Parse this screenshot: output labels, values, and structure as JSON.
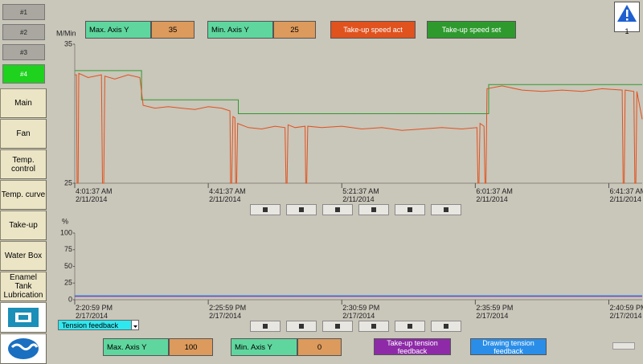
{
  "sidebar": {
    "unit_buttons": [
      "#1",
      "#2",
      "#3",
      "#4"
    ],
    "active_unit": 3,
    "menu": [
      "Main",
      "Fan",
      "Temp. control",
      "Temp. curve",
      "Take-up",
      "Water Box",
      "Enamel Tank Lubrication"
    ]
  },
  "warning_badge": "1",
  "axis_controls": {
    "max_label": "Max. Axis Y",
    "min_label": "Min. Axis Y"
  },
  "tension_selector": "Tension feedback",
  "chart_data": [
    {
      "type": "line",
      "y_unit": "M/Min",
      "xlim": [
        0,
        170
      ],
      "ylim": [
        25,
        35
      ],
      "yticks": [
        25,
        35
      ],
      "xticks": [
        {
          "value": 0,
          "label": "4:01:37 AM",
          "date": "2/11/2014"
        },
        {
          "value": 40,
          "label": "4:41:37 AM",
          "date": "2/11/2014"
        },
        {
          "value": 80,
          "label": "5:21:37 AM",
          "date": "2/11/2014"
        },
        {
          "value": 120,
          "label": "6:01:37 AM",
          "date": "2/11/2014"
        },
        {
          "value": 160,
          "label": "6:41:37 AM",
          "date": "2/11/2014"
        }
      ],
      "series": [
        {
          "name": "Take-up speed set",
          "color": "#2e9a2e",
          "x": [
            0,
            20,
            20,
            49,
            49,
            124,
            124,
            170
          ],
          "values": [
            33.1,
            33.1,
            31.0,
            31.0,
            30.0,
            30.0,
            32.1,
            32.1
          ]
        },
        {
          "name": "Take-up speed act",
          "color": "#e0521e",
          "x": [
            0,
            0.5,
            0.7,
            1.0,
            1.2,
            4,
            8,
            8.3,
            8.7,
            9,
            12,
            16,
            19.5,
            20.5,
            24,
            28,
            32,
            36,
            40,
            44,
            46.5,
            46.7,
            47,
            47.4,
            48,
            48.2,
            48.5,
            48.8,
            52,
            56,
            60,
            63,
            63.3,
            63.6,
            63.9,
            66,
            69,
            69.2,
            69.5,
            69.8,
            74,
            80,
            86,
            92,
            98,
            104,
            110,
            116,
            120.5,
            120.8,
            121.1,
            121.4,
            122.6,
            122.9,
            123.2,
            123.5,
            128,
            134,
            140,
            146,
            152,
            158,
            164,
            164.3,
            164.6,
            164.9,
            167.5,
            167.8,
            168.1,
            168.4,
            170
          ],
          "values": [
            32.8,
            32.8,
            25,
            25,
            32.9,
            32.6,
            32.8,
            25,
            25,
            32.7,
            32.5,
            32.8,
            32.6,
            30.6,
            30.4,
            30.5,
            30.4,
            30.3,
            30.5,
            30.4,
            30.2,
            25,
            25,
            29.8,
            29.7,
            25,
            25,
            29.3,
            29.0,
            28.9,
            29.1,
            29.0,
            25,
            25,
            29.2,
            29.0,
            29.1,
            25,
            25,
            29.1,
            29.0,
            29.1,
            28.9,
            29.0,
            28.8,
            28.9,
            29.0,
            28.9,
            29.0,
            25,
            25,
            29.3,
            29.1,
            25,
            25,
            31.8,
            32.0,
            31.7,
            31.6,
            31.7,
            31.6,
            31.8,
            31.7,
            25,
            25,
            31.7,
            31.6,
            25,
            25,
            31.6,
            29.6
          ]
        }
      ]
    },
    {
      "type": "line",
      "y_unit": "%",
      "xlim": [
        0,
        21.25
      ],
      "ylim": [
        0,
        100
      ],
      "yticks": [
        0,
        25,
        50,
        75,
        100
      ],
      "xticks": [
        {
          "value": 0,
          "label": "2:20:59 PM",
          "date": "2/17/2014"
        },
        {
          "value": 5,
          "label": "2:25:59 PM",
          "date": "2/17/2014"
        },
        {
          "value": 10,
          "label": "2:30:59 PM",
          "date": "2/17/2014"
        },
        {
          "value": 15,
          "label": "2:35:59 PM",
          "date": "2/17/2014"
        },
        {
          "value": 20,
          "label": "2:40:59 PM",
          "date": "2/17/2014"
        }
      ],
      "series": [
        {
          "name": "Take-up tension feedback",
          "color": "#8e2aa8",
          "x": [
            0,
            21.25
          ],
          "values": [
            5,
            5
          ]
        },
        {
          "name": "Drawing tension feedback",
          "color": "#2a8ee8",
          "x": [
            0,
            21.25
          ],
          "values": [
            6,
            6
          ]
        }
      ]
    }
  ]
}
